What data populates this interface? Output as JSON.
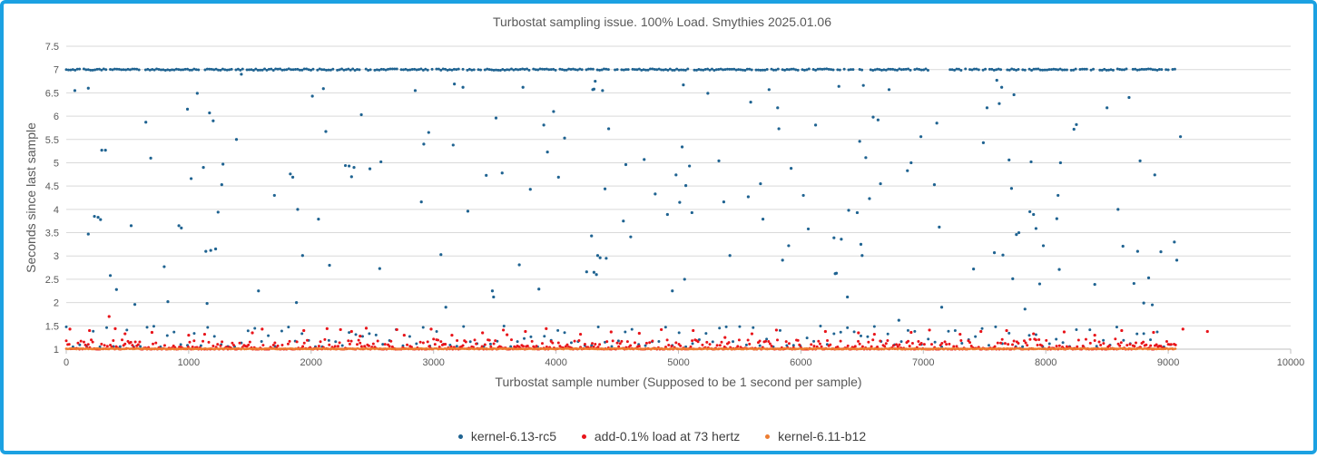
{
  "chart_data": {
    "type": "scatter",
    "title": "Turbostat sampling issue. 100% Load. Smythies 2025.01.06",
    "xlabel": "Turbostat sample number (Supposed to be 1 second per sample)",
    "ylabel": "Seconds since last sample",
    "xlim": [
      0,
      10000
    ],
    "ylim": [
      1,
      7.5
    ],
    "xticks": [
      "0",
      "1000",
      "2000",
      "3000",
      "4000",
      "5000",
      "6000",
      "7000",
      "8000",
      "9000",
      "10000"
    ],
    "yticks": [
      "1",
      "1.5",
      "2",
      "2.5",
      "3",
      "3.5",
      "4",
      "4.5",
      "5",
      "5.5",
      "6",
      "6.5",
      "7",
      "7.5"
    ],
    "grid": "horizontal",
    "legend_position": "bottom",
    "series": [
      {
        "name": "kernel-6.13-rc5",
        "color": "#1f6391",
        "points": [
          [
            70,
            6.55
          ],
          [
            180,
            6.6
          ],
          [
            180,
            3.47
          ],
          [
            230,
            3.85
          ],
          [
            260,
            3.83
          ],
          [
            280,
            3.78
          ],
          [
            290,
            5.27
          ],
          [
            320,
            5.27
          ],
          [
            360,
            2.58
          ],
          [
            410,
            2.28
          ],
          [
            530,
            3.65
          ],
          [
            560,
            1.96
          ],
          [
            650,
            5.87
          ],
          [
            690,
            5.1
          ],
          [
            800,
            2.77
          ],
          [
            830,
            2.02
          ],
          [
            920,
            3.65
          ],
          [
            940,
            3.6
          ],
          [
            990,
            6.15
          ],
          [
            1020,
            4.66
          ],
          [
            1070,
            6.49
          ],
          [
            1120,
            4.9
          ],
          [
            1140,
            3.1
          ],
          [
            1150,
            1.98
          ],
          [
            1170,
            6.07
          ],
          [
            1180,
            3.12
          ],
          [
            1200,
            5.9
          ],
          [
            1220,
            3.15
          ],
          [
            1240,
            3.94
          ],
          [
            1280,
            4.97
          ],
          [
            1270,
            4.53
          ],
          [
            1390,
            5.5
          ],
          [
            1430,
            6.9
          ],
          [
            1570,
            2.25
          ],
          [
            1700,
            4.3
          ],
          [
            1830,
            4.76
          ],
          [
            1850,
            4.69
          ],
          [
            1890,
            4.0
          ],
          [
            1880,
            2.0
          ],
          [
            1930,
            3.01
          ],
          [
            2010,
            6.43
          ],
          [
            2060,
            3.79
          ],
          [
            2120,
            5.67
          ],
          [
            2150,
            2.8
          ],
          [
            2100,
            6.59
          ],
          [
            2280,
            4.94
          ],
          [
            2310,
            4.93
          ],
          [
            2330,
            4.7
          ],
          [
            2350,
            4.9
          ],
          [
            2410,
            6.03
          ],
          [
            2480,
            4.87
          ],
          [
            2570,
            5.02
          ],
          [
            2560,
            2.73
          ],
          [
            2850,
            6.55
          ],
          [
            2900,
            4.16
          ],
          [
            2920,
            5.4
          ],
          [
            2960,
            5.65
          ],
          [
            3060,
            3.03
          ],
          [
            3100,
            1.9
          ],
          [
            3160,
            5.38
          ],
          [
            3170,
            6.69
          ],
          [
            3240,
            6.62
          ],
          [
            3280,
            3.96
          ],
          [
            3430,
            4.73
          ],
          [
            3480,
            2.25
          ],
          [
            3490,
            2.12
          ],
          [
            3510,
            5.96
          ],
          [
            3560,
            4.78
          ],
          [
            3700,
            2.81
          ],
          [
            3730,
            6.62
          ],
          [
            3790,
            4.43
          ],
          [
            3860,
            2.29
          ],
          [
            3900,
            5.81
          ],
          [
            3930,
            5.23
          ],
          [
            3980,
            6.1
          ],
          [
            4020,
            4.69
          ],
          [
            4070,
            5.53
          ],
          [
            4250,
            2.66
          ],
          [
            4290,
            3.43
          ],
          [
            4300,
            6.57
          ],
          [
            4310,
            6.58
          ],
          [
            4320,
            6.75
          ],
          [
            4310,
            2.65
          ],
          [
            4330,
            2.6
          ],
          [
            4340,
            3.01
          ],
          [
            4360,
            2.96
          ],
          [
            4380,
            6.55
          ],
          [
            4400,
            4.44
          ],
          [
            4410,
            2.95
          ],
          [
            4430,
            5.73
          ],
          [
            4550,
            3.75
          ],
          [
            4570,
            4.96
          ],
          [
            4610,
            3.41
          ],
          [
            4720,
            5.07
          ],
          [
            4810,
            4.33
          ],
          [
            4910,
            3.89
          ],
          [
            4950,
            2.25
          ],
          [
            4980,
            4.74
          ],
          [
            5010,
            4.15
          ],
          [
            5030,
            5.34
          ],
          [
            5040,
            6.67
          ],
          [
            5050,
            2.5
          ],
          [
            5060,
            4.51
          ],
          [
            5090,
            4.93
          ],
          [
            5110,
            3.93
          ],
          [
            5240,
            6.49
          ],
          [
            5330,
            5.04
          ],
          [
            5370,
            4.16
          ],
          [
            5420,
            3.01
          ],
          [
            5570,
            4.27
          ],
          [
            5590,
            6.3
          ],
          [
            5670,
            4.55
          ],
          [
            5690,
            3.79
          ],
          [
            5740,
            6.57
          ],
          [
            5810,
            6.18
          ],
          [
            5820,
            5.73
          ],
          [
            5850,
            2.91
          ],
          [
            5900,
            3.22
          ],
          [
            5920,
            4.88
          ],
          [
            6020,
            4.3
          ],
          [
            6060,
            3.58
          ],
          [
            6120,
            5.81
          ],
          [
            6270,
            3.39
          ],
          [
            6280,
            2.62
          ],
          [
            6290,
            2.63
          ],
          [
            6310,
            6.64
          ],
          [
            6330,
            3.36
          ],
          [
            6380,
            2.12
          ],
          [
            6390,
            3.98
          ],
          [
            6460,
            3.93
          ],
          [
            6480,
            5.46
          ],
          [
            6490,
            3.25
          ],
          [
            6500,
            3.01
          ],
          [
            6510,
            6.66
          ],
          [
            6530,
            5.11
          ],
          [
            6560,
            4.23
          ],
          [
            6590,
            5.98
          ],
          [
            6630,
            5.92
          ],
          [
            6650,
            4.55
          ],
          [
            6720,
            6.57
          ],
          [
            6800,
            1.62
          ],
          [
            6870,
            4.83
          ],
          [
            6900,
            5.0
          ],
          [
            6980,
            5.56
          ],
          [
            7090,
            4.53
          ],
          [
            7110,
            5.85
          ],
          [
            7130,
            3.62
          ],
          [
            7150,
            1.9
          ],
          [
            7410,
            2.72
          ],
          [
            7490,
            5.43
          ],
          [
            7520,
            6.18
          ],
          [
            7580,
            3.07
          ],
          [
            7600,
            6.77
          ],
          [
            7620,
            6.27
          ],
          [
            7640,
            6.62
          ],
          [
            7650,
            3.02
          ],
          [
            7700,
            5.06
          ],
          [
            7720,
            4.45
          ],
          [
            7730,
            2.51
          ],
          [
            7740,
            6.46
          ],
          [
            7760,
            3.46
          ],
          [
            7780,
            3.5
          ],
          [
            7830,
            1.86
          ],
          [
            7870,
            3.95
          ],
          [
            7880,
            5.02
          ],
          [
            7900,
            3.89
          ],
          [
            7920,
            3.59
          ],
          [
            7950,
            2.4
          ],
          [
            7980,
            3.22
          ],
          [
            8090,
            3.8
          ],
          [
            8100,
            4.3
          ],
          [
            8110,
            2.71
          ],
          [
            8120,
            5.0
          ],
          [
            8230,
            5.72
          ],
          [
            8250,
            5.82
          ],
          [
            8400,
            2.39
          ],
          [
            8500,
            6.18
          ],
          [
            8590,
            4.0
          ],
          [
            8630,
            3.21
          ],
          [
            8680,
            6.4
          ],
          [
            8720,
            2.41
          ],
          [
            8750,
            3.1
          ],
          [
            8770,
            5.04
          ],
          [
            8800,
            1.99
          ],
          [
            8840,
            2.53
          ],
          [
            8870,
            1.95
          ],
          [
            8890,
            4.74
          ],
          [
            8940,
            3.09
          ],
          [
            9050,
            3.3
          ],
          [
            9070,
            2.91
          ],
          [
            9100,
            5.56
          ]
        ]
      },
      {
        "name": "add-0.1% load at 73 hertz",
        "color": "#e8141a",
        "points": [
          [
            30,
            1.43
          ],
          [
            190,
            1.4
          ],
          [
            350,
            1.7
          ],
          [
            400,
            1.44
          ],
          [
            480,
            1.33
          ],
          [
            700,
            1.36
          ],
          [
            1000,
            1.3
          ],
          [
            1130,
            1.32
          ],
          [
            1520,
            1.35
          ],
          [
            1600,
            1.43
          ],
          [
            1940,
            1.4
          ],
          [
            2130,
            1.44
          ],
          [
            2240,
            1.42
          ],
          [
            2330,
            1.38
          ],
          [
            2400,
            1.28
          ],
          [
            2450,
            1.45
          ],
          [
            2700,
            1.42
          ],
          [
            2760,
            1.3
          ],
          [
            2980,
            1.43
          ],
          [
            3150,
            1.3
          ],
          [
            3400,
            1.35
          ],
          [
            3570,
            1.41
          ],
          [
            3600,
            1.31
          ],
          [
            3750,
            1.38
          ],
          [
            3920,
            1.44
          ],
          [
            4200,
            1.32
          ],
          [
            4450,
            1.37
          ],
          [
            4680,
            1.34
          ],
          [
            4860,
            1.42
          ],
          [
            5120,
            1.4
          ],
          [
            5380,
            1.25
          ],
          [
            5600,
            1.33
          ],
          [
            5800,
            1.41
          ],
          [
            6200,
            1.38
          ],
          [
            6470,
            1.35
          ],
          [
            6600,
            1.32
          ],
          [
            6900,
            1.36
          ],
          [
            7050,
            1.41
          ],
          [
            7300,
            1.32
          ],
          [
            7470,
            1.38
          ],
          [
            7680,
            1.4
          ],
          [
            7900,
            1.33
          ],
          [
            8150,
            1.37
          ],
          [
            8400,
            1.3
          ],
          [
            8620,
            1.4
          ],
          [
            8880,
            1.36
          ],
          [
            9120,
            1.43
          ],
          [
            9320,
            1.38
          ]
        ]
      },
      {
        "name": "kernel-6.11-b12",
        "color": "#ed7d31",
        "points": []
      }
    ]
  }
}
